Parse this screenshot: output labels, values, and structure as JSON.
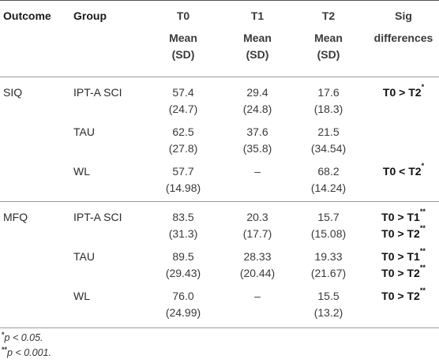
{
  "header": {
    "outcome": "Outcome",
    "group": "Group",
    "t0": "T0",
    "t1": "T1",
    "t2": "T2",
    "mean_label": "Mean",
    "sd_label": "(SD)",
    "sig_line1": "Sig",
    "sig_line2": "differences"
  },
  "siq": {
    "outcome": "SIQ",
    "rows": [
      {
        "group": "IPT-A SCI",
        "t0_mean": "57.4",
        "t0_sd": "(24.7)",
        "t1_mean": "29.4",
        "t1_sd": "(24.8)",
        "t2_mean": "17.6",
        "t2_sd": "(18.3)",
        "sig1": "T0 > T2",
        "sig1_mark": "*",
        "sig2": "",
        "sig2_mark": ""
      },
      {
        "group": "TAU",
        "t0_mean": "62.5",
        "t0_sd": "(27.8)",
        "t1_mean": "37.6",
        "t1_sd": "(35.8)",
        "t2_mean": "21.5",
        "t2_sd": "(34.54)",
        "sig1": "",
        "sig1_mark": "",
        "sig2": "",
        "sig2_mark": ""
      },
      {
        "group": "WL",
        "t0_mean": "57.7",
        "t0_sd": "(14.98)",
        "t1_mean": "–",
        "t1_sd": "",
        "t2_mean": "68.2",
        "t2_sd": "(14.24)",
        "sig1": "T0 < T2",
        "sig1_mark": "*",
        "sig2": "",
        "sig2_mark": ""
      }
    ]
  },
  "mfq": {
    "outcome": "MFQ",
    "rows": [
      {
        "group": "IPT-A SCI",
        "t0_mean": "83.5",
        "t0_sd": "(31.3)",
        "t1_mean": "20.3",
        "t1_sd": "(17.7)",
        "t2_mean": "15.7",
        "t2_sd": "(15.08)",
        "sig1": "T0 > T1",
        "sig1_mark": "**",
        "sig2": "T0 > T2",
        "sig2_mark": "**"
      },
      {
        "group": "TAU",
        "t0_mean": "89.5",
        "t0_sd": "(29.43)",
        "t1_mean": "28.33",
        "t1_sd": "(20.44)",
        "t2_mean": "19.33",
        "t2_sd": "(21.67)",
        "sig1": "T0 > T1",
        "sig1_mark": "**",
        "sig2": "T0 > T2",
        "sig2_mark": "**"
      },
      {
        "group": "WL",
        "t0_mean": "76.0",
        "t0_sd": "(24.99)",
        "t1_mean": "–",
        "t1_sd": "",
        "t2_mean": "15.5",
        "t2_sd": "(13.2)",
        "sig1": "T0 > T2",
        "sig1_mark": "**",
        "sig2": "",
        "sig2_mark": ""
      }
    ]
  },
  "footnotes": [
    {
      "mark": "*",
      "text": "p < 0.05."
    },
    {
      "mark": "**",
      "text": "p < 0.001."
    }
  ]
}
